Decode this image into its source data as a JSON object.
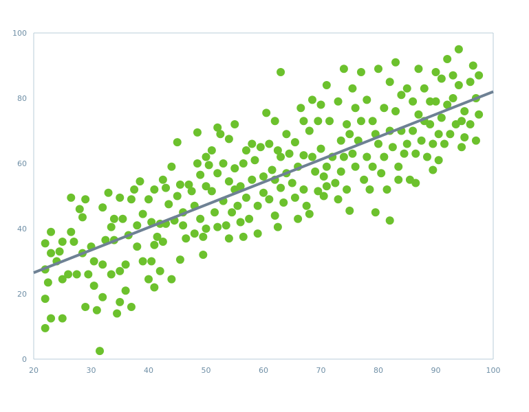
{
  "chart_data": {
    "type": "scatter",
    "title": "",
    "xlabel": "",
    "ylabel": "",
    "xlim": [
      20,
      100
    ],
    "ylim": [
      0,
      100
    ],
    "x_ticks": [
      "20",
      "30",
      "40",
      "50",
      "60",
      "70",
      "80",
      "90",
      "100"
    ],
    "y_ticks": [
      "0",
      "20",
      "40",
      "60",
      "80",
      "100"
    ],
    "grid": false,
    "colors": {
      "points": "#6cc12d",
      "trend": "#6e8194",
      "axes": "#b9ccd8"
    },
    "trendline": {
      "x": [
        20,
        100
      ],
      "y": [
        26.5,
        82
      ]
    },
    "points": [
      [
        22,
        9.5
      ],
      [
        22,
        18.5
      ],
      [
        22,
        27.5
      ],
      [
        22,
        35.5
      ],
      [
        22.5,
        23.5
      ],
      [
        23,
        12.5
      ],
      [
        23,
        32.5
      ],
      [
        23,
        39
      ],
      [
        24,
        30
      ],
      [
        24.5,
        33
      ],
      [
        25,
        12.5
      ],
      [
        25,
        24.5
      ],
      [
        25,
        36
      ],
      [
        26,
        26
      ],
      [
        26.5,
        39
      ],
      [
        26.5,
        49.5
      ],
      [
        27,
        36
      ],
      [
        27.5,
        26
      ],
      [
        28,
        46
      ],
      [
        28.5,
        32.5
      ],
      [
        28.5,
        43.5
      ],
      [
        29,
        16
      ],
      [
        29,
        49
      ],
      [
        29.5,
        26
      ],
      [
        30,
        34.5
      ],
      [
        30.5,
        22.5
      ],
      [
        30.5,
        30
      ],
      [
        31,
        15
      ],
      [
        31.5,
        2.5
      ],
      [
        32,
        19
      ],
      [
        32,
        29
      ],
      [
        32,
        46.5
      ],
      [
        32.5,
        36.5
      ],
      [
        33,
        51
      ],
      [
        33.5,
        26
      ],
      [
        33.5,
        40.5
      ],
      [
        34,
        43
      ],
      [
        34,
        36.5
      ],
      [
        34.5,
        14
      ],
      [
        35,
        17.5
      ],
      [
        35,
        27
      ],
      [
        35,
        49.5
      ],
      [
        35.5,
        43
      ],
      [
        36,
        21
      ],
      [
        36,
        29
      ],
      [
        36.5,
        38
      ],
      [
        37,
        16
      ],
      [
        37,
        49
      ],
      [
        37.5,
        52
      ],
      [
        38,
        34.5
      ],
      [
        38,
        41
      ],
      [
        38.5,
        54.5
      ],
      [
        39,
        44.5
      ],
      [
        39,
        30
      ],
      [
        40,
        24.5
      ],
      [
        40,
        49
      ],
      [
        40.5,
        42
      ],
      [
        40.5,
        30
      ],
      [
        41,
        22
      ],
      [
        41,
        35
      ],
      [
        41,
        52
      ],
      [
        41.5,
        37.5
      ],
      [
        42,
        27
      ],
      [
        42,
        41.5
      ],
      [
        42.5,
        55
      ],
      [
        42.5,
        36
      ],
      [
        43,
        41.5
      ],
      [
        43,
        52.5
      ],
      [
        43.5,
        47.5
      ],
      [
        44,
        59
      ],
      [
        44,
        24.5
      ],
      [
        44.5,
        42.5
      ],
      [
        45,
        66.5
      ],
      [
        45,
        50
      ],
      [
        45.5,
        53.5
      ],
      [
        45.5,
        30.5
      ],
      [
        46,
        41
      ],
      [
        46,
        45
      ],
      [
        46.5,
        37
      ],
      [
        47,
        53.5
      ],
      [
        47.5,
        51.5
      ],
      [
        48,
        38.5
      ],
      [
        48,
        47
      ],
      [
        48.5,
        60
      ],
      [
        48.5,
        69.5
      ],
      [
        49,
        56.5
      ],
      [
        49,
        43
      ],
      [
        49.5,
        37.5
      ],
      [
        49.5,
        32
      ],
      [
        50,
        62
      ],
      [
        50,
        53
      ],
      [
        50,
        40
      ],
      [
        50.5,
        59.5
      ],
      [
        51,
        64
      ],
      [
        51,
        51.5
      ],
      [
        51.5,
        45
      ],
      [
        52,
        71
      ],
      [
        52,
        57
      ],
      [
        52,
        40.5
      ],
      [
        52.5,
        69
      ],
      [
        53,
        60
      ],
      [
        53,
        48.5
      ],
      [
        53.5,
        41
      ],
      [
        54,
        67.5
      ],
      [
        54,
        54.5
      ],
      [
        54,
        37
      ],
      [
        54.5,
        45
      ],
      [
        55,
        72
      ],
      [
        55,
        58.5
      ],
      [
        55,
        52
      ],
      [
        55.5,
        47
      ],
      [
        56,
        42
      ],
      [
        56,
        53
      ],
      [
        56.5,
        60
      ],
      [
        56.5,
        37.5
      ],
      [
        57,
        64
      ],
      [
        57,
        49.5
      ],
      [
        57.5,
        43
      ],
      [
        58,
        66
      ],
      [
        58,
        55
      ],
      [
        58.5,
        61
      ],
      [
        59,
        38.5
      ],
      [
        59,
        47
      ],
      [
        59.5,
        65
      ],
      [
        60,
        56
      ],
      [
        60,
        51
      ],
      [
        60.5,
        75.5
      ],
      [
        61,
        66
      ],
      [
        61,
        49
      ],
      [
        61.5,
        58
      ],
      [
        62,
        73
      ],
      [
        62,
        55
      ],
      [
        62,
        44
      ],
      [
        62.5,
        64
      ],
      [
        62.5,
        40.5
      ],
      [
        63,
        88
      ],
      [
        63,
        62
      ],
      [
        63,
        52.5
      ],
      [
        63.5,
        48
      ],
      [
        64,
        69
      ],
      [
        64,
        57
      ],
      [
        64.5,
        63
      ],
      [
        65,
        54
      ],
      [
        65.5,
        66.5
      ],
      [
        65.5,
        49.5
      ],
      [
        66,
        59
      ],
      [
        66,
        43
      ],
      [
        66.5,
        77
      ],
      [
        67,
        73
      ],
      [
        67,
        62.5
      ],
      [
        67,
        52
      ],
      [
        67.5,
        47
      ],
      [
        68,
        70
      ],
      [
        68,
        44.5
      ],
      [
        68.5,
        79.5
      ],
      [
        68.5,
        62
      ],
      [
        69,
        57.5
      ],
      [
        69.5,
        73
      ],
      [
        69.5,
        51.5
      ],
      [
        70,
        78
      ],
      [
        70,
        64.5
      ],
      [
        70.5,
        56
      ],
      [
        70.5,
        50
      ],
      [
        71,
        84
      ],
      [
        71,
        59
      ],
      [
        71,
        53
      ],
      [
        71.5,
        73
      ],
      [
        72,
        62
      ],
      [
        72.5,
        54
      ],
      [
        73,
        79
      ],
      [
        73,
        49
      ],
      [
        73.5,
        67
      ],
      [
        73.5,
        57.5
      ],
      [
        74,
        89
      ],
      [
        74,
        62
      ],
      [
        74.5,
        72
      ],
      [
        74.5,
        52
      ],
      [
        75,
        69
      ],
      [
        75,
        45.5
      ],
      [
        75.5,
        83
      ],
      [
        75.5,
        63
      ],
      [
        76,
        77
      ],
      [
        76,
        59
      ],
      [
        76.5,
        67
      ],
      [
        77,
        88
      ],
      [
        77,
        73
      ],
      [
        77.5,
        55
      ],
      [
        78,
        79.5
      ],
      [
        78,
        62
      ],
      [
        78.5,
        52
      ],
      [
        79,
        73
      ],
      [
        79,
        59
      ],
      [
        79.5,
        69
      ],
      [
        79.5,
        45
      ],
      [
        80,
        89
      ],
      [
        80,
        66
      ],
      [
        80.5,
        57
      ],
      [
        81,
        77
      ],
      [
        81,
        62
      ],
      [
        81.5,
        52
      ],
      [
        82,
        85
      ],
      [
        82,
        70
      ],
      [
        82,
        42.5
      ],
      [
        82.5,
        65
      ],
      [
        83,
        91
      ],
      [
        83,
        76
      ],
      [
        83.5,
        59
      ],
      [
        83.5,
        55
      ],
      [
        84,
        81
      ],
      [
        84,
        70
      ],
      [
        84.5,
        63
      ],
      [
        85,
        83
      ],
      [
        85,
        66
      ],
      [
        85.5,
        55
      ],
      [
        86,
        79
      ],
      [
        86,
        70
      ],
      [
        86.5,
        63
      ],
      [
        86.5,
        54
      ],
      [
        87,
        89
      ],
      [
        87,
        75
      ],
      [
        87.5,
        67
      ],
      [
        88,
        83
      ],
      [
        88,
        73
      ],
      [
        88.5,
        62
      ],
      [
        89,
        79
      ],
      [
        89,
        72
      ],
      [
        89.5,
        66
      ],
      [
        89.5,
        58
      ],
      [
        90,
        88
      ],
      [
        90,
        79
      ],
      [
        90.5,
        69
      ],
      [
        90.5,
        61
      ],
      [
        91,
        86
      ],
      [
        91,
        74
      ],
      [
        91.5,
        66
      ],
      [
        92,
        92
      ],
      [
        92,
        78
      ],
      [
        92.5,
        69
      ],
      [
        93,
        87
      ],
      [
        93,
        80
      ],
      [
        93.5,
        72
      ],
      [
        94,
        95
      ],
      [
        94,
        84
      ],
      [
        94.5,
        73
      ],
      [
        94.5,
        65
      ],
      [
        95,
        76
      ],
      [
        95,
        68
      ],
      [
        96,
        85
      ],
      [
        96,
        72
      ],
      [
        96.5,
        90
      ],
      [
        97,
        80
      ],
      [
        97,
        67
      ],
      [
        97.5,
        75
      ],
      [
        97.5,
        87
      ]
    ]
  }
}
